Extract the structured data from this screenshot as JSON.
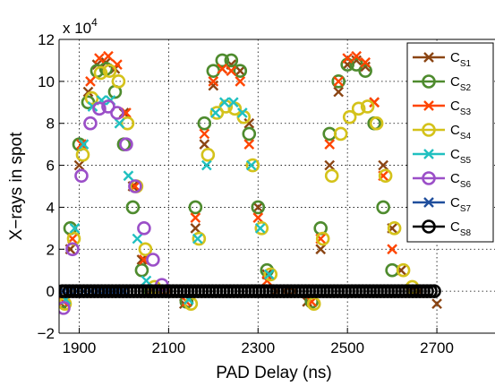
{
  "chart_data": {
    "type": "scatter",
    "xlabel": "PAD Delay (ns)",
    "ylabel": "X−rays in spot",
    "y_multiplier": "x 10",
    "y_multiplier_exp": "4",
    "xlim": [
      1855,
      2830
    ],
    "ylim": [
      -2,
      12
    ],
    "x_ticks": [
      1900,
      2100,
      2300,
      2500,
      2700
    ],
    "x_tick_labels": [
      "1900",
      "2100",
      "2300",
      "2500",
      "2700"
    ],
    "y_ticks": [
      -2,
      0,
      2,
      4,
      6,
      8,
      10,
      12
    ],
    "y_tick_labels": [
      "−2",
      "0",
      "2",
      "4",
      "6",
      "8",
      "10",
      "12"
    ],
    "grid": true,
    "legend_position": "top-right",
    "series": [
      {
        "name": "C",
        "sub": "S1",
        "marker": "x",
        "color": "#8B4513",
        "points": [
          [
            1860,
            -0.6
          ],
          [
            1880,
            2
          ],
          [
            1900,
            6
          ],
          [
            1920,
            9.5
          ],
          [
            1940,
            10.8
          ],
          [
            1960,
            10.9
          ],
          [
            1980,
            10.6
          ],
          [
            2000,
            8.5
          ],
          [
            2020,
            5
          ],
          [
            2040,
            1.5
          ],
          [
            2060,
            0
          ],
          [
            2080,
            0
          ],
          [
            2100,
            0
          ],
          [
            2135,
            -0.6
          ],
          [
            2160,
            3
          ],
          [
            2180,
            7
          ],
          [
            2200,
            9.8
          ],
          [
            2220,
            10.6
          ],
          [
            2240,
            10.8
          ],
          [
            2260,
            10.5
          ],
          [
            2280,
            8
          ],
          [
            2300,
            4
          ],
          [
            2320,
            0.8
          ],
          [
            2340,
            0
          ],
          [
            2360,
            0
          ],
          [
            2380,
            0
          ],
          [
            2410,
            -0.5
          ],
          [
            2440,
            2
          ],
          [
            2460,
            6
          ],
          [
            2480,
            9.5
          ],
          [
            2500,
            10.8
          ],
          [
            2520,
            11
          ],
          [
            2540,
            10.7
          ],
          [
            2560,
            9
          ],
          [
            2580,
            6
          ],
          [
            2600,
            3
          ],
          [
            2620,
            1
          ],
          [
            2640,
            0
          ],
          [
            2660,
            0
          ],
          [
            2700,
            -0.6
          ]
        ]
      },
      {
        "name": "C",
        "sub": "S2",
        "marker": "o",
        "color": "#4E8B2E",
        "points": [
          [
            1862,
            -0.5
          ],
          [
            1880,
            3
          ],
          [
            1900,
            7
          ],
          [
            1920,
            9
          ],
          [
            1940,
            10.5
          ],
          [
            1960,
            10.6
          ],
          [
            1980,
            9.5
          ],
          [
            2000,
            7
          ],
          [
            2020,
            4
          ],
          [
            2040,
            1
          ],
          [
            2060,
            0
          ],
          [
            2140,
            -0.5
          ],
          [
            2160,
            4
          ],
          [
            2180,
            8
          ],
          [
            2200,
            10.5
          ],
          [
            2220,
            11
          ],
          [
            2240,
            11
          ],
          [
            2260,
            10.5
          ],
          [
            2280,
            7.5
          ],
          [
            2300,
            4
          ],
          [
            2320,
            1
          ],
          [
            2420,
            -0.5
          ],
          [
            2440,
            3
          ],
          [
            2460,
            7.5
          ],
          [
            2480,
            10
          ],
          [
            2500,
            10.8
          ],
          [
            2520,
            10.8
          ],
          [
            2540,
            10.5
          ],
          [
            2560,
            8
          ],
          [
            2580,
            4
          ],
          [
            2600,
            1
          ]
        ]
      },
      {
        "name": "C",
        "sub": "S3",
        "marker": "x",
        "color": "#FF4500",
        "points": [
          [
            1865,
            -0.5
          ],
          [
            1885,
            2.5
          ],
          [
            1905,
            7
          ],
          [
            1925,
            10
          ],
          [
            1945,
            11.1
          ],
          [
            1965,
            11.2
          ],
          [
            1985,
            10.8
          ],
          [
            2005,
            8.5
          ],
          [
            2025,
            5
          ],
          [
            2045,
            1.5
          ],
          [
            2140,
            -0.5
          ],
          [
            2160,
            3.5
          ],
          [
            2180,
            7.5
          ],
          [
            2200,
            10
          ],
          [
            2220,
            10.6
          ],
          [
            2240,
            10.5
          ],
          [
            2260,
            10
          ],
          [
            2280,
            7
          ],
          [
            2300,
            3.5
          ],
          [
            2320,
            0.5
          ],
          [
            2420,
            -0.5
          ],
          [
            2440,
            2.5
          ],
          [
            2460,
            7
          ],
          [
            2480,
            10
          ],
          [
            2500,
            11.1
          ],
          [
            2520,
            11.2
          ],
          [
            2540,
            10.9
          ],
          [
            2560,
            9
          ],
          [
            2580,
            5.5
          ],
          [
            2600,
            2
          ]
        ]
      },
      {
        "name": "C",
        "sub": "S4",
        "marker": "o",
        "color": "#D4C21A",
        "points": [
          [
            1868,
            -0.6
          ],
          [
            1888,
            2.5
          ],
          [
            1908,
            6.5
          ],
          [
            1928,
            9.2
          ],
          [
            1948,
            10.4
          ],
          [
            1968,
            10.5
          ],
          [
            1988,
            10
          ],
          [
            2008,
            8
          ],
          [
            2028,
            5
          ],
          [
            2048,
            2
          ],
          [
            2068,
            0.2
          ],
          [
            2150,
            -0.6
          ],
          [
            2168,
            2.5
          ],
          [
            2188,
            6.5
          ],
          [
            2208,
            8.5
          ],
          [
            2228,
            8.8
          ],
          [
            2248,
            8.7
          ],
          [
            2268,
            8.3
          ],
          [
            2288,
            6
          ],
          [
            2308,
            3
          ],
          [
            2328,
            0.8
          ],
          [
            2425,
            -0.6
          ],
          [
            2445,
            2.5
          ],
          [
            2465,
            5.5
          ],
          [
            2485,
            7.5
          ],
          [
            2505,
            8.3
          ],
          [
            2525,
            8.7
          ],
          [
            2545,
            8.8
          ],
          [
            2565,
            8
          ],
          [
            2585,
            5.5
          ],
          [
            2605,
            3
          ],
          [
            2625,
            1
          ],
          [
            2645,
            0.2
          ]
        ]
      },
      {
        "name": "C",
        "sub": "S5",
        "marker": "x",
        "color": "#20C0C0",
        "points": [
          [
            1870,
            -0.4
          ],
          [
            1890,
            3
          ],
          [
            1910,
            7
          ],
          [
            1930,
            8.8
          ],
          [
            1950,
            9.1
          ],
          [
            1970,
            9.1
          ],
          [
            1990,
            8
          ],
          [
            2010,
            5.5
          ],
          [
            2030,
            2.5
          ],
          [
            2050,
            0.5
          ],
          [
            2145,
            -0.4
          ],
          [
            2165,
            2.5
          ],
          [
            2185,
            6
          ],
          [
            2205,
            8.5
          ],
          [
            2225,
            9
          ],
          [
            2245,
            9
          ],
          [
            2265,
            8.5
          ],
          [
            2285,
            6
          ],
          [
            2305,
            3
          ],
          [
            2325,
            0.8
          ]
        ]
      },
      {
        "name": "C",
        "sub": "S6",
        "marker": "o",
        "color": "#9B4FC8",
        "points": [
          [
            1865,
            -0.8
          ],
          [
            1885,
            2
          ],
          [
            1905,
            5.5
          ],
          [
            1925,
            8
          ],
          [
            1945,
            8.7
          ],
          [
            1965,
            8.8
          ],
          [
            1985,
            8.5
          ],
          [
            2005,
            7
          ],
          [
            2025,
            5
          ],
          [
            2045,
            3
          ],
          [
            2065,
            1.5
          ],
          [
            2085,
            0.3
          ]
        ]
      },
      {
        "name": "C",
        "sub": "S7",
        "marker": "x",
        "color": "#1F4E9C",
        "points": [
          [
            1865,
            0
          ],
          [
            1880,
            0
          ],
          [
            1895,
            0
          ],
          [
            1910,
            0
          ],
          [
            1925,
            0
          ],
          [
            1940,
            0
          ],
          [
            1955,
            0
          ],
          [
            1970,
            0
          ],
          [
            1985,
            0
          ],
          [
            2000,
            0
          ]
        ]
      },
      {
        "name": "C",
        "sub": "S8",
        "marker": "o",
        "color": "#000000",
        "points": [
          [
            1862,
            0
          ],
          [
            1870,
            0
          ],
          [
            1878,
            0
          ],
          [
            1886,
            0
          ],
          [
            1894,
            0
          ],
          [
            1902,
            0
          ],
          [
            1910,
            0
          ],
          [
            1918,
            0
          ],
          [
            1926,
            0
          ],
          [
            1934,
            0
          ],
          [
            1942,
            0
          ],
          [
            1950,
            0
          ],
          [
            1958,
            0
          ],
          [
            1966,
            0
          ],
          [
            1974,
            0
          ],
          [
            1982,
            0
          ],
          [
            1990,
            0
          ],
          [
            1998,
            0
          ],
          [
            2006,
            0
          ],
          [
            2014,
            0
          ],
          [
            2022,
            0
          ],
          [
            2030,
            0
          ],
          [
            2038,
            0
          ],
          [
            2046,
            0
          ],
          [
            2054,
            0
          ],
          [
            2062,
            0
          ],
          [
            2070,
            0
          ],
          [
            2078,
            0
          ],
          [
            2086,
            0
          ],
          [
            2094,
            0
          ],
          [
            2102,
            0
          ],
          [
            2110,
            0
          ],
          [
            2118,
            0
          ],
          [
            2126,
            0
          ],
          [
            2134,
            0
          ],
          [
            2142,
            0
          ],
          [
            2150,
            0
          ],
          [
            2158,
            0
          ],
          [
            2166,
            0
          ],
          [
            2174,
            0
          ],
          [
            2182,
            0
          ],
          [
            2190,
            0
          ],
          [
            2198,
            0
          ],
          [
            2206,
            0
          ],
          [
            2214,
            0
          ],
          [
            2222,
            0
          ],
          [
            2230,
            0
          ],
          [
            2238,
            0
          ],
          [
            2246,
            0
          ],
          [
            2254,
            0
          ],
          [
            2262,
            0
          ],
          [
            2270,
            0
          ],
          [
            2278,
            0
          ],
          [
            2286,
            0
          ],
          [
            2294,
            0
          ],
          [
            2302,
            0
          ],
          [
            2310,
            0
          ],
          [
            2318,
            0
          ],
          [
            2326,
            0
          ],
          [
            2334,
            0
          ],
          [
            2342,
            0
          ],
          [
            2350,
            0
          ],
          [
            2358,
            0
          ],
          [
            2366,
            0
          ],
          [
            2374,
            0
          ],
          [
            2382,
            0
          ],
          [
            2390,
            0
          ],
          [
            2398,
            0
          ],
          [
            2406,
            0
          ],
          [
            2414,
            0
          ],
          [
            2422,
            0
          ],
          [
            2430,
            0
          ],
          [
            2438,
            0
          ],
          [
            2446,
            0
          ],
          [
            2454,
            0
          ],
          [
            2462,
            0
          ],
          [
            2470,
            0
          ],
          [
            2478,
            0
          ],
          [
            2486,
            0
          ],
          [
            2494,
            0
          ],
          [
            2502,
            0
          ],
          [
            2510,
            0
          ],
          [
            2518,
            0
          ],
          [
            2526,
            0
          ],
          [
            2534,
            0
          ],
          [
            2542,
            0
          ],
          [
            2550,
            0
          ],
          [
            2558,
            0
          ],
          [
            2566,
            0
          ],
          [
            2574,
            0
          ],
          [
            2582,
            0
          ],
          [
            2590,
            0
          ],
          [
            2598,
            0
          ],
          [
            2606,
            0
          ],
          [
            2614,
            0
          ],
          [
            2622,
            0
          ],
          [
            2630,
            0
          ],
          [
            2638,
            0
          ],
          [
            2646,
            0
          ],
          [
            2654,
            0
          ],
          [
            2662,
            0
          ],
          [
            2670,
            0
          ],
          [
            2678,
            0
          ],
          [
            2686,
            0
          ],
          [
            2694,
            0
          ]
        ]
      }
    ]
  }
}
